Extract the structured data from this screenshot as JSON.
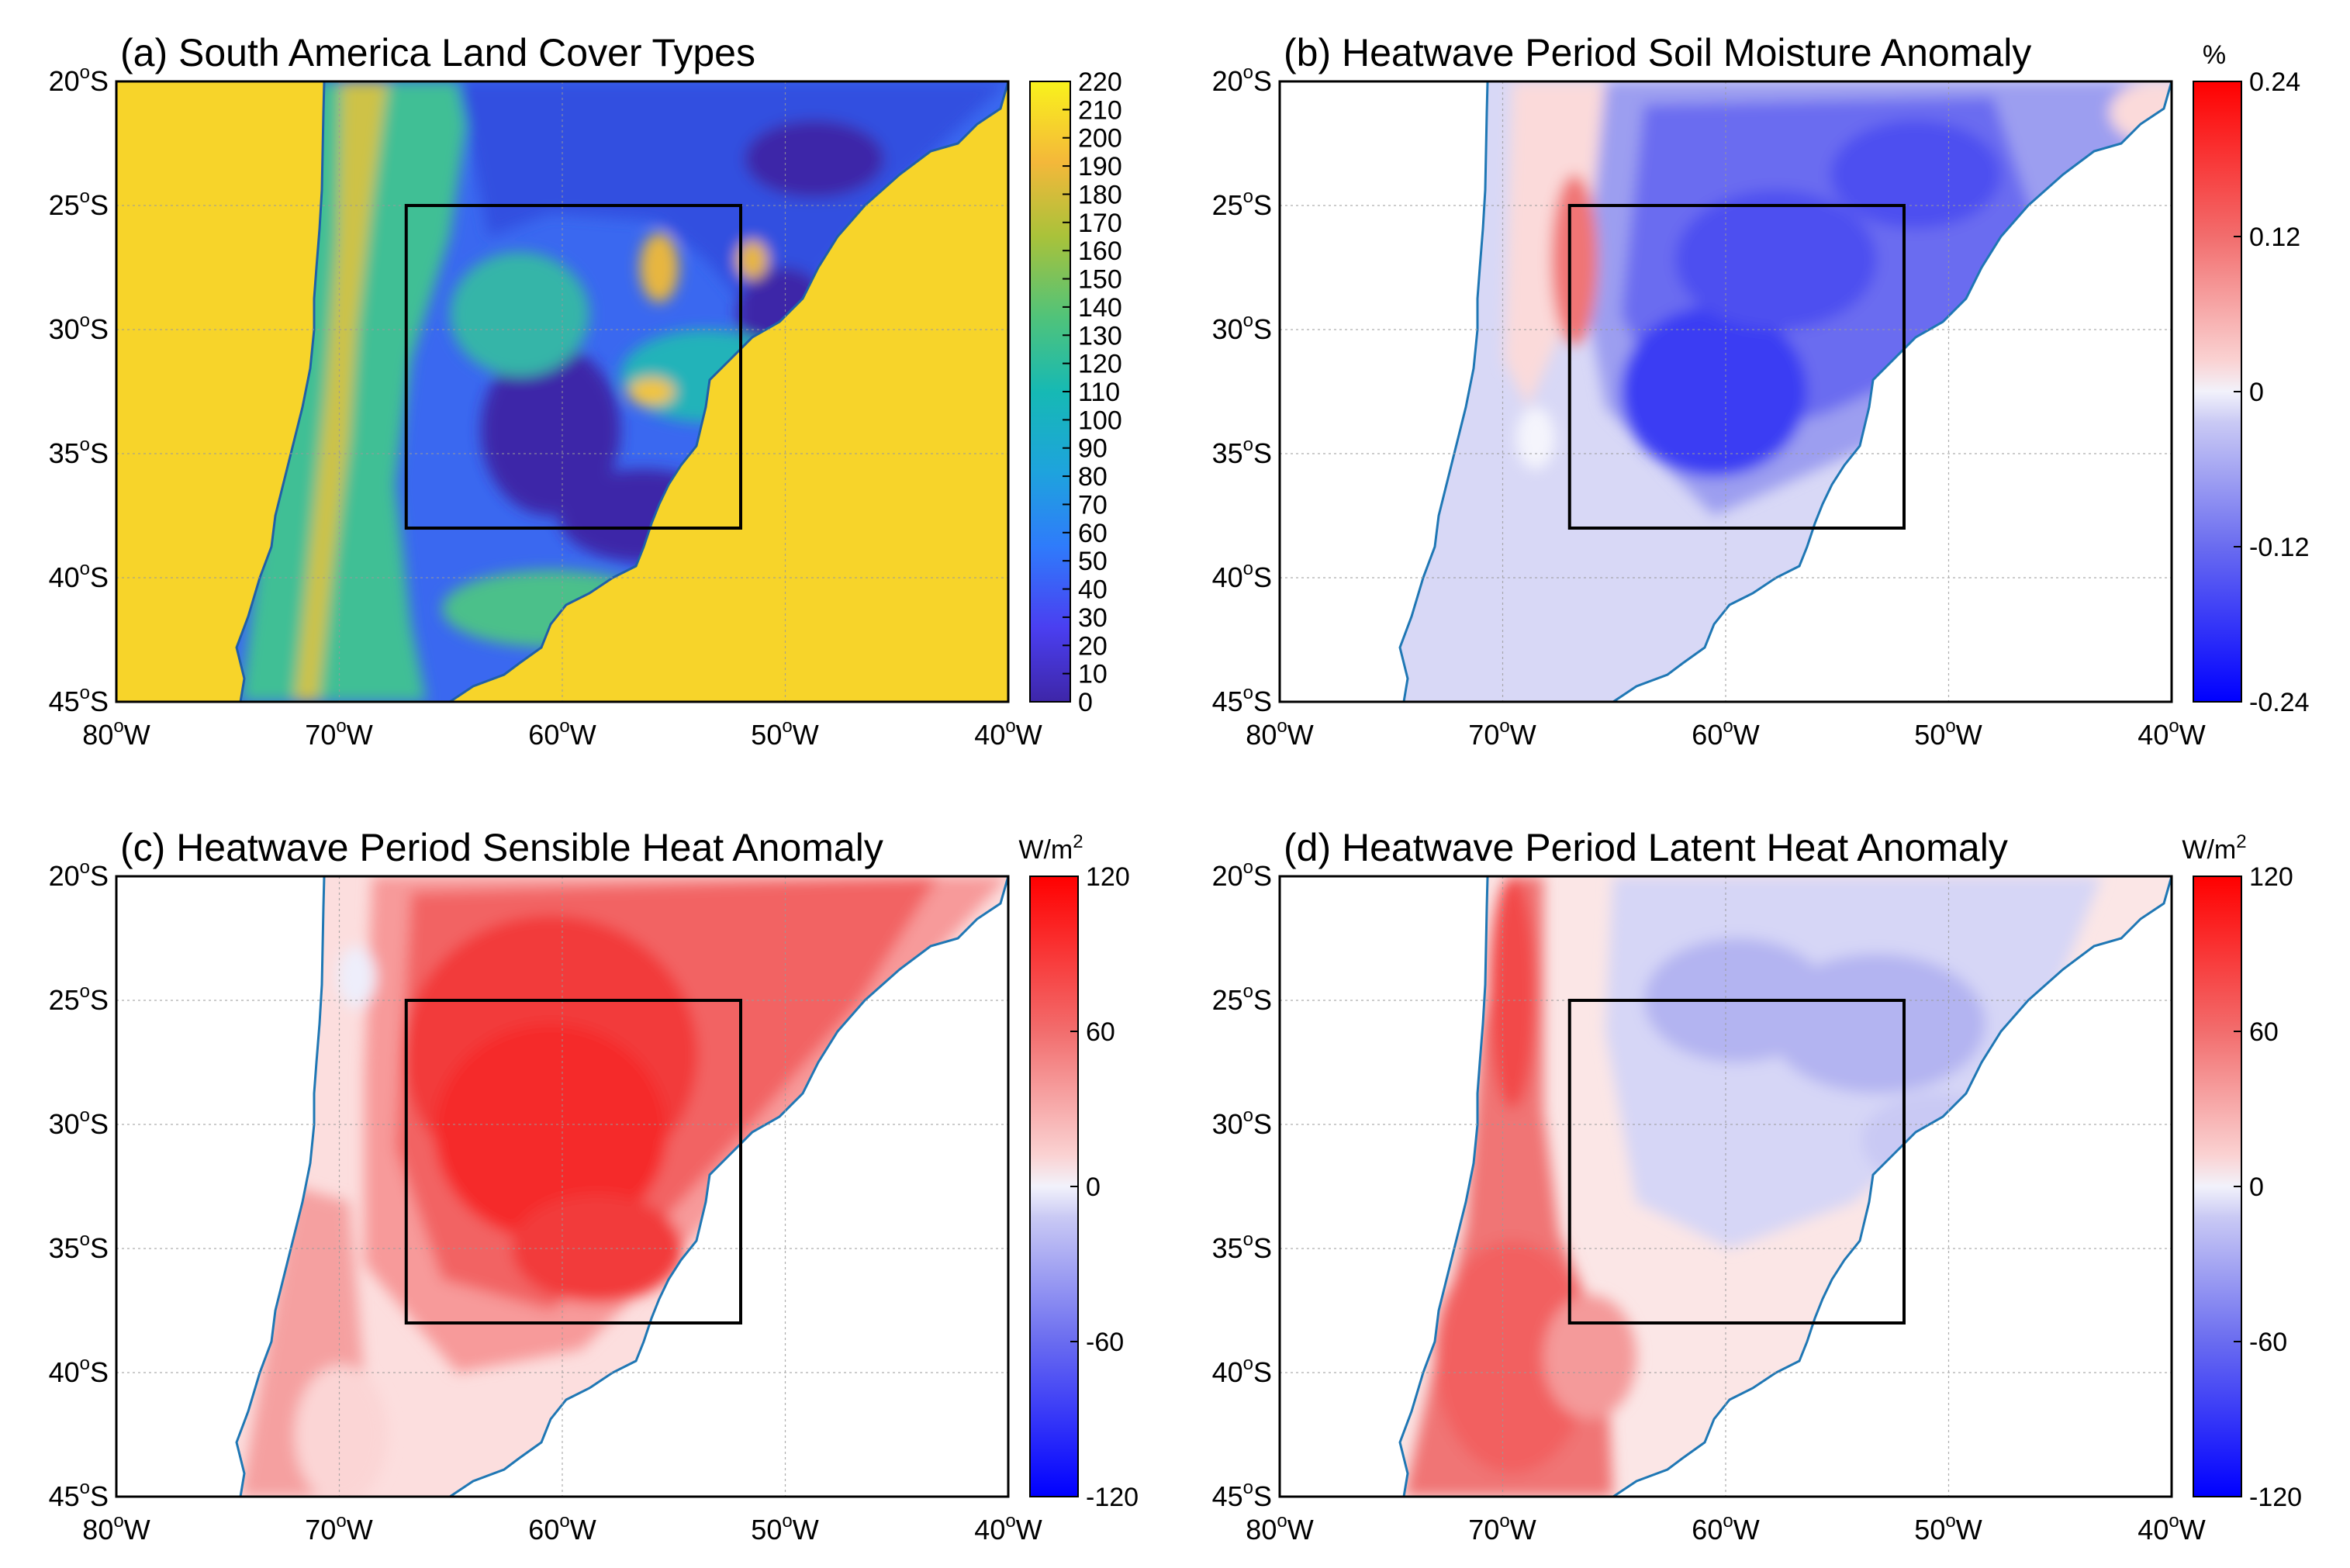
{
  "panels": [
    {
      "title": "(a) South America Land Cover Types",
      "kind": "landcover",
      "unit": "",
      "colorbar": {
        "type": "parula",
        "ticks": [
          "220",
          "210",
          "200",
          "190",
          "180",
          "170",
          "160",
          "150",
          "140",
          "130",
          "120",
          "110",
          "100",
          "90",
          "80",
          "70",
          "60",
          "50",
          "40",
          "30",
          "20",
          "10",
          "0"
        ]
      }
    },
    {
      "title": "(b) Heatwave Period Soil Moisture Anomaly",
      "kind": "soil",
      "unit": "%",
      "colorbar": {
        "type": "diverging",
        "ticks": [
          "0.24",
          "0.12",
          "0",
          "-0.12",
          "-0.24"
        ]
      }
    },
    {
      "title": "(c) Heatwave Period Sensible Heat Anomaly",
      "kind": "sensible",
      "unit": "W/m2",
      "unit_base": "W/m",
      "unit_sup": "2",
      "colorbar": {
        "type": "diverging",
        "ticks": [
          "120",
          "60",
          "0",
          "-60",
          "-120"
        ]
      }
    },
    {
      "title": "(d) Heatwave Period Latent Heat Anomaly",
      "kind": "latent",
      "unit": "W/m2",
      "unit_base": "W/m",
      "unit_sup": "2",
      "colorbar": {
        "type": "diverging",
        "ticks": [
          "120",
          "60",
          "0",
          "-60",
          "-120"
        ]
      }
    }
  ],
  "axes": {
    "lat_ticks": [
      {
        "num": "20",
        "deg": "o",
        "hem": "S"
      },
      {
        "num": "25",
        "deg": "o",
        "hem": "S"
      },
      {
        "num": "30",
        "deg": "o",
        "hem": "S"
      },
      {
        "num": "35",
        "deg": "o",
        "hem": "S"
      },
      {
        "num": "40",
        "deg": "o",
        "hem": "S"
      },
      {
        "num": "45",
        "deg": "o",
        "hem": "S"
      }
    ],
    "lon_ticks": [
      {
        "num": "80",
        "deg": "o",
        "hem": "W"
      },
      {
        "num": "70",
        "deg": "o",
        "hem": "W"
      },
      {
        "num": "60",
        "deg": "o",
        "hem": "W"
      },
      {
        "num": "50",
        "deg": "o",
        "hem": "W"
      },
      {
        "num": "40",
        "deg": "o",
        "hem": "W"
      }
    ],
    "lat_range": [
      -20,
      -45
    ],
    "lon_range": [
      -80,
      -40
    ],
    "study_box": {
      "lon": [
        -67,
        -52
      ],
      "lat": [
        -25,
        -38
      ]
    }
  },
  "colors": {
    "parula_low": "#3e26a8",
    "parula_high": "#f9d52c",
    "ocean_landcover": "#f7d42a",
    "coastline": "#1f77b4",
    "diverging_red": "#ff0000",
    "diverging_blue": "#0000ff"
  }
}
